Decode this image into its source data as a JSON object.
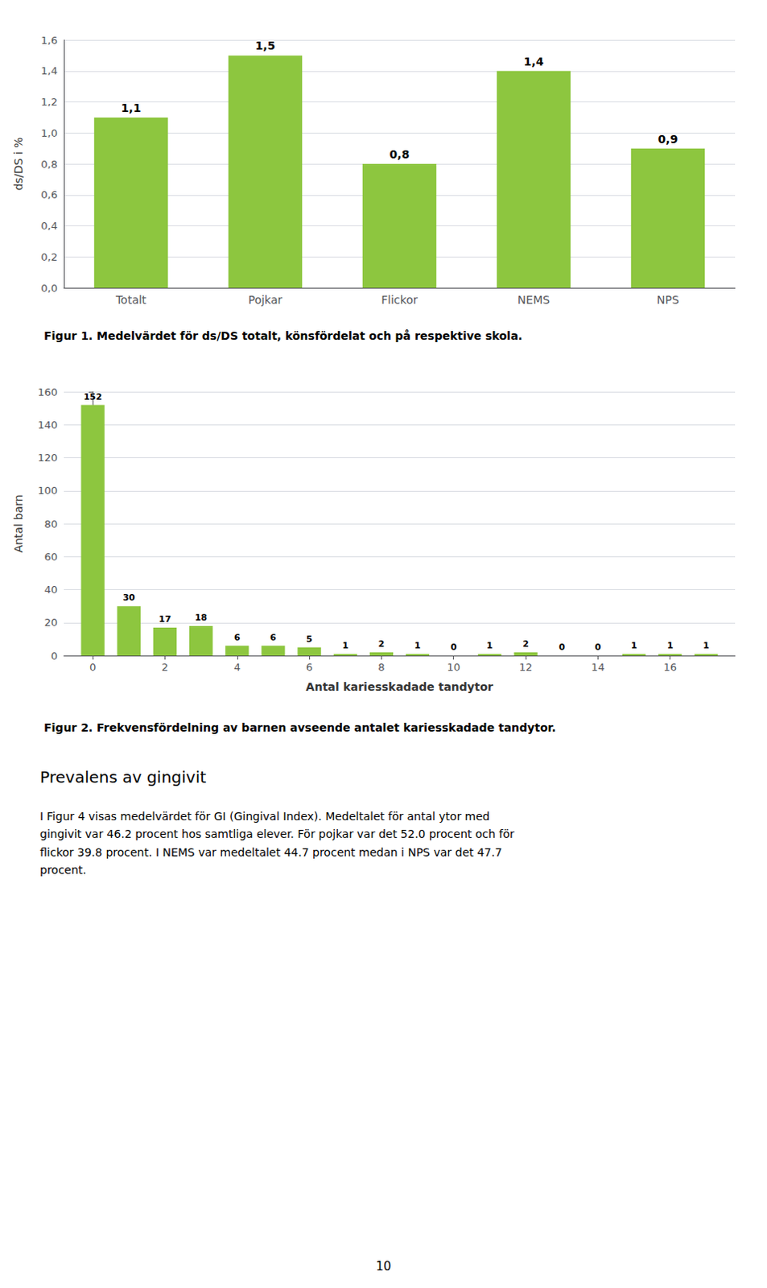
{
  "chart_data": [
    {
      "type": "bar",
      "title": "Figur 1. Medelvärdet för ds/DS totalt, könsfördelat och på respektive skola.",
      "categories": [
        "Totalt",
        "Pojkar",
        "Flickor",
        "NEMS",
        "NPS"
      ],
      "values": [
        1.1,
        1.5,
        0.8,
        1.4,
        0.9
      ],
      "value_labels": [
        "1,1",
        "1,5",
        "0,8",
        "1,4",
        "0,9"
      ],
      "ylabel": "ds/DS i %",
      "color": "#8DC63F",
      "ylim": [
        0,
        1.6
      ],
      "yticks": [
        {
          "value": 0.0,
          "label": "0,0"
        },
        {
          "value": 0.2,
          "label": "0,2"
        },
        {
          "value": 0.4,
          "label": "0,4"
        },
        {
          "value": 0.6,
          "label": "0,6"
        },
        {
          "value": 0.8,
          "label": "0,8"
        },
        {
          "value": 1.0,
          "label": "1,0"
        },
        {
          "value": 1.2,
          "label": "1,2"
        },
        {
          "value": 1.4,
          "label": "1,4"
        },
        {
          "value": 1.6,
          "label": "1,6"
        }
      ],
      "grid": true,
      "data_labels": true
    },
    {
      "type": "bar",
      "title": "Figur 2. Frekvensfördelning av barnen avseende antalet kariesskadade tandytor.",
      "x": [
        0,
        1,
        2,
        3,
        4,
        5,
        6,
        7,
        8,
        9,
        10,
        11,
        12,
        13,
        14,
        15,
        16,
        17
      ],
      "values": [
        152,
        30,
        17,
        18,
        6,
        6,
        5,
        1,
        2,
        1,
        0,
        1,
        2,
        0,
        0,
        1,
        1,
        1
      ],
      "xlabel": "Antal kariesskadade tandytor",
      "ylabel": "Antal barn",
      "color": "#8DC63F",
      "xlim": [
        -0.8,
        17.8
      ],
      "xticks": [
        0,
        2,
        4,
        6,
        8,
        10,
        12,
        14,
        16
      ],
      "ylim": [
        0,
        160
      ],
      "yticks": [
        0,
        20,
        40,
        60,
        80,
        100,
        120,
        140,
        160
      ],
      "grid": true,
      "data_labels": true
    }
  ],
  "annotations": [
    "Prevalens av gingivit",
    "I Figur 4 visas medelvärdet för GI (Gingival Index). Medeltalet för antal ytor med\ngingivit var 46.2 procent hos samtliga elever. För pojkar var det 52.0 procent och för\nflickor 39.8 procent. I NEMS var medeltalet 44.7 procent medan i NPS var det 47.7\nprocent.",
    "10"
  ]
}
